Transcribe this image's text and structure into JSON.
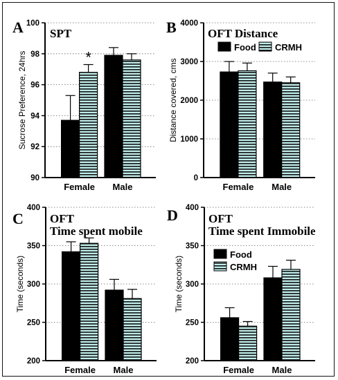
{
  "colors": {
    "food": "#000000",
    "crmh_fill": "#bfecea",
    "crmh_stripe": "#111111"
  },
  "legend_labels": {
    "food": "Food",
    "crmh": "CRMH"
  },
  "chart_data": [
    {
      "panel": "A",
      "type": "bar",
      "title": "SPT",
      "title_line2": "",
      "ylabel": "Sucrose Preference, 24hrs",
      "xlabel": "",
      "categories": [
        "Female",
        "Male"
      ],
      "ylim": [
        90,
        100
      ],
      "yticks": [
        "90",
        "92",
        "94",
        "96",
        "98",
        "100"
      ],
      "legend": "none",
      "grid": "dotted horizontal",
      "series": [
        {
          "key": "food",
          "values": [
            93.7,
            97.9
          ],
          "errors": [
            1.6,
            0.5
          ]
        },
        {
          "key": "crmh",
          "values": [
            96.8,
            97.6
          ],
          "errors": [
            0.5,
            0.4
          ]
        }
      ],
      "annotations": [
        {
          "text": "*",
          "series": 1,
          "category": 0
        }
      ]
    },
    {
      "panel": "B",
      "type": "bar",
      "title": "OFT Distance",
      "title_line2": "",
      "ylabel": "Distance covered, cms",
      "xlabel": "",
      "categories": [
        "Female",
        "Male"
      ],
      "ylim": [
        0,
        4000
      ],
      "yticks": [
        "0",
        "1000",
        "2000",
        "3000",
        "4000"
      ],
      "legend": "top-horizontal",
      "grid": "dotted horizontal",
      "series": [
        {
          "key": "food",
          "values": [
            2730,
            2470
          ],
          "errors": [
            270,
            230
          ]
        },
        {
          "key": "crmh",
          "values": [
            2760,
            2450
          ],
          "errors": [
            200,
            150
          ]
        }
      ],
      "annotations": []
    },
    {
      "panel": "C",
      "type": "bar",
      "title": "OFT",
      "title_line2": "Time spent mobile",
      "ylabel": "Time (seconds)",
      "xlabel": "",
      "categories": [
        "Female",
        "Male"
      ],
      "ylim": [
        200,
        400
      ],
      "yticks": [
        "200",
        "250",
        "300",
        "350",
        "400"
      ],
      "legend": "none",
      "grid": "dotted horizontal",
      "series": [
        {
          "key": "food",
          "values": [
            342,
            292
          ],
          "errors": [
            13,
            14
          ]
        },
        {
          "key": "crmh",
          "values": [
            353,
            281
          ],
          "errors": [
            7,
            12
          ]
        }
      ],
      "annotations": []
    },
    {
      "panel": "D",
      "type": "bar",
      "title": "OFT",
      "title_line2": "Time spent Immobile",
      "ylabel": "Time (seconds)",
      "xlabel": "",
      "categories": [
        "Female",
        "Male"
      ],
      "ylim": [
        200,
        400
      ],
      "yticks": [
        "200",
        "250",
        "300",
        "350",
        "400"
      ],
      "legend": "middle-left-vertical",
      "grid": "dotted horizontal",
      "series": [
        {
          "key": "food",
          "values": [
            256,
            308
          ],
          "errors": [
            13,
            15
          ]
        },
        {
          "key": "crmh",
          "values": [
            245,
            319
          ],
          "errors": [
            6,
            12
          ]
        }
      ],
      "annotations": []
    }
  ]
}
